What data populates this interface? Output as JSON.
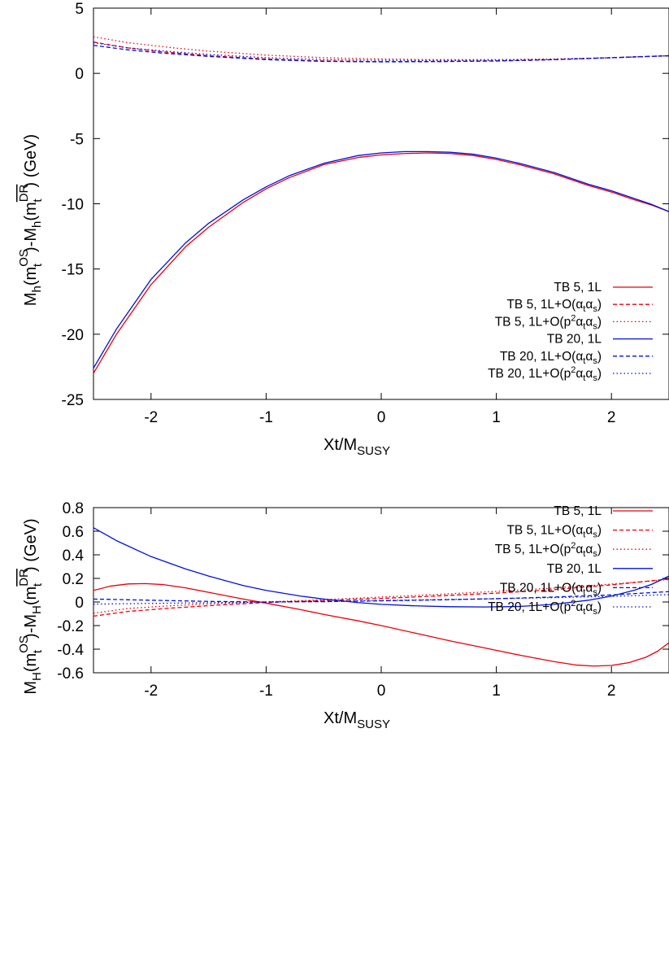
{
  "chart_data": [
    {
      "type": "line",
      "ylabel": {
        "main": "M",
        "sub1": "h",
        "mid1": "(m",
        "sup_os": "OS",
        "sub_t1": "t",
        "mid2": ")-M",
        "sub2": "h",
        "mid3": "(m",
        "sup_dr": "DR",
        "sub_t2": "t",
        "tail": ") (GeV)"
      },
      "xlabel": {
        "main": "Xt/M",
        "sub": "SUSY"
      },
      "xlim": [
        -2.5,
        2.5
      ],
      "ylim": [
        -25,
        5
      ],
      "xticks": [
        -2,
        -1,
        0,
        1,
        2
      ],
      "yticks": [
        5,
        0,
        -5,
        -10,
        -15,
        -20,
        -25
      ],
      "legend_position": "bottom-right",
      "series": [
        {
          "name": "TB 5, 1L",
          "legend": {
            "a": "TB 5, 1L"
          },
          "color": "#e8000b",
          "dash": "solid",
          "points": [
            [
              -2.5,
              -23.0
            ],
            [
              -2.3,
              -20.0
            ],
            [
              -2.0,
              -16.2
            ],
            [
              -1.7,
              -13.3
            ],
            [
              -1.5,
              -11.8
            ],
            [
              -1.2,
              -9.9
            ],
            [
              -1.0,
              -8.85
            ],
            [
              -0.8,
              -8.0
            ],
            [
              -0.5,
              -7.0
            ],
            [
              -0.2,
              -6.45
            ],
            [
              0.0,
              -6.25
            ],
            [
              0.2,
              -6.15
            ],
            [
              0.4,
              -6.1
            ],
            [
              0.6,
              -6.15
            ],
            [
              0.8,
              -6.3
            ],
            [
              1.0,
              -6.6
            ],
            [
              1.2,
              -7.0
            ],
            [
              1.5,
              -7.7
            ],
            [
              1.8,
              -8.6
            ],
            [
              2.0,
              -9.1
            ],
            [
              2.2,
              -9.7
            ],
            [
              2.35,
              -10.1
            ],
            [
              2.5,
              -10.6
            ]
          ]
        },
        {
          "name": "TB 5, 1L+O(αtαs)",
          "legend": {
            "a": "TB 5, 1L+O(α",
            "b": "t",
            "c": "α",
            "d": "s",
            "e": ")"
          },
          "color": "#e8000b",
          "dash": "5,3",
          "points": [
            [
              -2.5,
              2.4
            ],
            [
              -2.2,
              1.95
            ],
            [
              -1.9,
              1.65
            ],
            [
              -1.5,
              1.35
            ],
            [
              -1.0,
              1.1
            ],
            [
              -0.5,
              0.95
            ],
            [
              0.0,
              0.9
            ],
            [
              0.5,
              0.92
            ],
            [
              1.0,
              0.95
            ],
            [
              1.5,
              1.05
            ],
            [
              2.0,
              1.2
            ],
            [
              2.5,
              1.35
            ]
          ]
        },
        {
          "name": "TB 5, 1L+O(p²αtαs)",
          "legend": {
            "a": "TB 5, 1L+O(p",
            "sup": "2",
            "b": "α",
            "c": "t",
            "d": "α",
            "e": "s",
            "f": ")"
          },
          "color": "#e8000b",
          "dash": "1.5,3",
          "points": [
            [
              -2.5,
              2.8
            ],
            [
              -2.2,
              2.35
            ],
            [
              -1.8,
              1.95
            ],
            [
              -1.5,
              1.7
            ],
            [
              -1.0,
              1.4
            ],
            [
              -0.5,
              1.2
            ],
            [
              0.0,
              1.1
            ],
            [
              0.5,
              1.05
            ],
            [
              1.0,
              1.05
            ],
            [
              1.5,
              1.1
            ],
            [
              2.0,
              1.2
            ],
            [
              2.5,
              1.35
            ]
          ]
        },
        {
          "name": "TB 20, 1L",
          "legend": {
            "a": "TB 20, 1L"
          },
          "color": "#0010e0",
          "dash": "solid",
          "points": [
            [
              -2.5,
              -22.6
            ],
            [
              -2.3,
              -19.6
            ],
            [
              -2.0,
              -15.8
            ],
            [
              -1.7,
              -13.0
            ],
            [
              -1.5,
              -11.5
            ],
            [
              -1.2,
              -9.7
            ],
            [
              -1.0,
              -8.7
            ],
            [
              -0.8,
              -7.85
            ],
            [
              -0.5,
              -6.9
            ],
            [
              -0.2,
              -6.3
            ],
            [
              0.0,
              -6.1
            ],
            [
              0.2,
              -6.0
            ],
            [
              0.4,
              -6.0
            ],
            [
              0.6,
              -6.05
            ],
            [
              0.8,
              -6.2
            ],
            [
              1.0,
              -6.5
            ],
            [
              1.2,
              -6.9
            ],
            [
              1.5,
              -7.6
            ],
            [
              1.8,
              -8.5
            ],
            [
              2.0,
              -9.0
            ],
            [
              2.2,
              -9.6
            ],
            [
              2.35,
              -10.05
            ],
            [
              2.5,
              -10.6
            ]
          ]
        },
        {
          "name": "TB 20, 1L+O(αtαs)",
          "legend": {
            "a": "TB 20, 1L+O(α",
            "b": "t",
            "c": "α",
            "d": "s",
            "e": ")"
          },
          "color": "#0010e0",
          "dash": "5,3",
          "points": [
            [
              -2.5,
              2.15
            ],
            [
              -2.2,
              1.8
            ],
            [
              -1.9,
              1.55
            ],
            [
              -1.5,
              1.3
            ],
            [
              -1.0,
              1.05
            ],
            [
              -0.5,
              0.92
            ],
            [
              0.0,
              0.88
            ],
            [
              0.5,
              0.9
            ],
            [
              1.0,
              0.95
            ],
            [
              1.5,
              1.05
            ],
            [
              2.0,
              1.2
            ],
            [
              2.5,
              1.35
            ]
          ]
        },
        {
          "name": "TB 20, 1L+O(p²αtαs)",
          "legend": {
            "a": "TB 20, 1L+O(p",
            "sup": "2",
            "b": "α",
            "c": "t",
            "d": "α",
            "e": "s",
            "f": ")"
          },
          "color": "#0010e0",
          "dash": "1.5,3",
          "points": [
            [
              -2.5,
              2.35
            ],
            [
              -2.2,
              1.95
            ],
            [
              -1.8,
              1.65
            ],
            [
              -1.5,
              1.45
            ],
            [
              -1.0,
              1.2
            ],
            [
              -0.5,
              1.05
            ],
            [
              0.0,
              1.0
            ],
            [
              0.5,
              0.98
            ],
            [
              1.0,
              1.0
            ],
            [
              1.5,
              1.07
            ],
            [
              2.0,
              1.2
            ],
            [
              2.5,
              1.35
            ]
          ]
        }
      ]
    },
    {
      "type": "line",
      "ylabel": {
        "main": "M",
        "sub1": "H",
        "mid1": "(m",
        "sup_os": "OS",
        "sub_t1": "t",
        "mid2": ")-M",
        "sub2": "H",
        "mid3": "(m",
        "sup_dr": "DR",
        "sub_t2": "t",
        "tail": ") (GeV)"
      },
      "xlabel": {
        "main": "Xt/M",
        "sub": "SUSY"
      },
      "xlim": [
        -2.5,
        2.5
      ],
      "ylim": [
        -0.6,
        0.8
      ],
      "xticks": [
        -2,
        -1,
        0,
        1,
        2
      ],
      "yticks": [
        0.8,
        0.6,
        0.4,
        0.2,
        0,
        -0.2,
        -0.4,
        -0.6
      ],
      "ytick_labels": [
        "0.8",
        "0.6",
        "0.4",
        "0.2",
        "0",
        "-0.2",
        "-0.4",
        "-0.6"
      ],
      "legend_position": "top-right",
      "series": [
        {
          "name": "TB 5, 1L",
          "legend": {
            "a": "TB 5, 1L"
          },
          "color": "#e8000b",
          "dash": "solid",
          "points": [
            [
              -2.5,
              0.098
            ],
            [
              -2.35,
              0.135
            ],
            [
              -2.2,
              0.153
            ],
            [
              -2.05,
              0.156
            ],
            [
              -1.9,
              0.148
            ],
            [
              -1.7,
              0.12
            ],
            [
              -1.5,
              0.082
            ],
            [
              -1.2,
              0.025
            ],
            [
              -1.0,
              -0.01
            ],
            [
              -0.7,
              -0.065
            ],
            [
              -0.5,
              -0.105
            ],
            [
              -0.2,
              -0.16
            ],
            [
              0.0,
              -0.2
            ],
            [
              0.3,
              -0.265
            ],
            [
              0.6,
              -0.33
            ],
            [
              0.9,
              -0.39
            ],
            [
              1.2,
              -0.45
            ],
            [
              1.5,
              -0.505
            ],
            [
              1.7,
              -0.535
            ],
            [
              1.85,
              -0.543
            ],
            [
              2.0,
              -0.538
            ],
            [
              2.15,
              -0.515
            ],
            [
              2.3,
              -0.468
            ],
            [
              2.4,
              -0.418
            ],
            [
              2.5,
              -0.345
            ]
          ]
        },
        {
          "name": "TB 5, 1L+O(αtαs)",
          "legend": {
            "a": "TB 5, 1L+O(α",
            "b": "t",
            "c": "α",
            "d": "s",
            "e": ")"
          },
          "color": "#e8000b",
          "dash": "5,3",
          "points": [
            [
              -2.5,
              -0.12
            ],
            [
              -2.2,
              -0.08
            ],
            [
              -1.8,
              -0.05
            ],
            [
              -1.4,
              -0.025
            ],
            [
              -1.0,
              -0.005
            ],
            [
              -0.5,
              0.013
            ],
            [
              0.0,
              0.03
            ],
            [
              0.5,
              0.052
            ],
            [
              1.0,
              0.075
            ],
            [
              1.5,
              0.105
            ],
            [
              2.0,
              0.145
            ],
            [
              2.5,
              0.195
            ]
          ]
        },
        {
          "name": "TB 5, 1L+O(p²αtαs)",
          "legend": {
            "a": "TB 5, 1L+O(p",
            "sup": "2",
            "b": "α",
            "c": "t",
            "d": "α",
            "e": "s",
            "f": ")"
          },
          "color": "#e8000b",
          "dash": "1.5,3",
          "points": [
            [
              -2.5,
              -0.095
            ],
            [
              -2.2,
              -0.055
            ],
            [
              -1.8,
              -0.03
            ],
            [
              -1.4,
              -0.012
            ],
            [
              -1.0,
              0.0
            ],
            [
              -0.5,
              0.02
            ],
            [
              0.0,
              0.042
            ],
            [
              0.5,
              0.065
            ],
            [
              1.0,
              0.09
            ],
            [
              1.5,
              0.118
            ],
            [
              2.0,
              0.152
            ],
            [
              2.5,
              0.19
            ]
          ]
        },
        {
          "name": "TB 20, 1L",
          "legend": {
            "a": "TB 20, 1L"
          },
          "color": "#0010e0",
          "dash": "solid",
          "points": [
            [
              -2.5,
              0.63
            ],
            [
              -2.3,
              0.52
            ],
            [
              -2.0,
              0.385
            ],
            [
              -1.7,
              0.28
            ],
            [
              -1.5,
              0.22
            ],
            [
              -1.2,
              0.14
            ],
            [
              -1.0,
              0.098
            ],
            [
              -0.7,
              0.05
            ],
            [
              -0.5,
              0.025
            ],
            [
              -0.2,
              -0.005
            ],
            [
              0.0,
              -0.02
            ],
            [
              0.3,
              -0.033
            ],
            [
              0.6,
              -0.04
            ],
            [
              0.9,
              -0.042
            ],
            [
              1.2,
              -0.038
            ],
            [
              1.5,
              -0.02
            ],
            [
              1.8,
              0.015
            ],
            [
              2.0,
              0.05
            ],
            [
              2.2,
              0.1
            ],
            [
              2.35,
              0.15
            ],
            [
              2.5,
              0.22
            ]
          ]
        },
        {
          "name": "TB 20, 1L+O(αtαs)",
          "legend": {
            "a": "TB 20, 1L+O(α",
            "b": "t",
            "c": "α",
            "d": "s",
            "e": ")"
          },
          "color": "#0010e0",
          "dash": "5,3",
          "points": [
            [
              -2.5,
              0.025
            ],
            [
              -2.0,
              0.015
            ],
            [
              -1.5,
              0.005
            ],
            [
              -1.0,
              0.0
            ],
            [
              -0.5,
              0.003
            ],
            [
              0.0,
              0.01
            ],
            [
              0.5,
              0.018
            ],
            [
              1.0,
              0.028
            ],
            [
              1.5,
              0.042
            ],
            [
              2.0,
              0.06
            ],
            [
              2.5,
              0.088
            ]
          ]
        },
        {
          "name": "TB 20, 1L+O(p²αtαs)",
          "legend": {
            "a": "TB 20, 1L+O(p",
            "sup": "2",
            "b": "α",
            "c": "t",
            "d": "α",
            "e": "s",
            "f": ")"
          },
          "color": "#0010e0",
          "dash": "1.5,3",
          "points": [
            [
              -2.5,
              -0.018
            ],
            [
              -2.0,
              -0.012
            ],
            [
              -1.5,
              -0.006
            ],
            [
              -1.0,
              0.0
            ],
            [
              -0.5,
              0.006
            ],
            [
              0.0,
              0.013
            ],
            [
              0.5,
              0.02
            ],
            [
              1.0,
              0.028
            ],
            [
              1.5,
              0.037
            ],
            [
              2.0,
              0.048
            ],
            [
              2.5,
              0.062
            ]
          ]
        }
      ]
    }
  ]
}
